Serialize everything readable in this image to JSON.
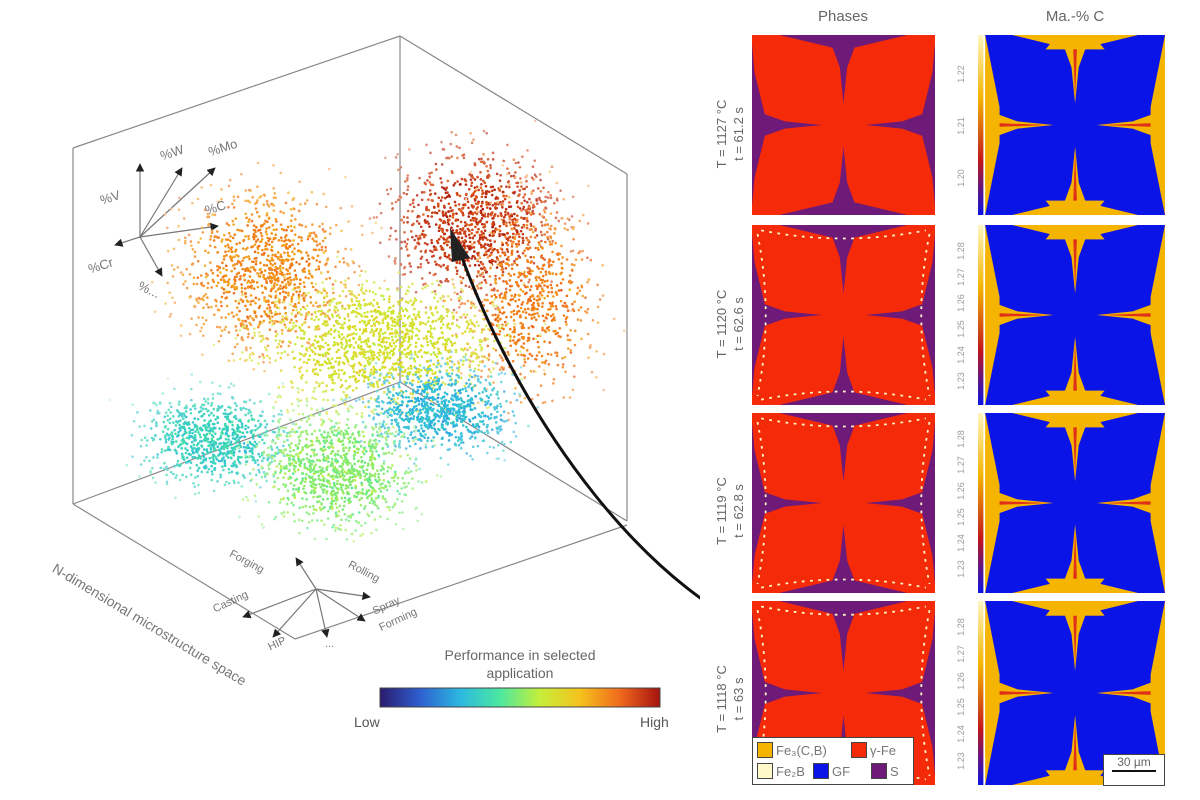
{
  "left_panel": {
    "space_label": "N-dimensional microstructure space",
    "composition_axes": [
      "%V",
      "%W",
      "%Mo",
      "%C",
      "%Cr",
      "%..."
    ],
    "process_axes": [
      "Forging",
      "Rolling",
      "Casting",
      "Spray",
      "Forming",
      "HIP",
      "..."
    ],
    "colorbar": {
      "title_line1": "Performance in selected",
      "title_line2": "application",
      "low": "Low",
      "high": "High",
      "colormap": [
        "#2a1b6e",
        "#2f5fd0",
        "#2cb8e0",
        "#4be8a0",
        "#c6ee3a",
        "#f5c21c",
        "#f06a1c",
        "#a3120f"
      ]
    }
  },
  "right_panel": {
    "column_titles": [
      "Phases",
      "Ma.-% C"
    ],
    "rows": [
      {
        "temperature": "T = 1127 °C",
        "time": "t = 61.2 s",
        "ticks": [
          "1.22",
          "1.21",
          "1.20"
        ]
      },
      {
        "temperature": "T = 1120 °C",
        "time": "t = 62.6 s",
        "ticks": [
          "1.28",
          "1.27",
          "1.26",
          "1.25",
          "1.24",
          "1.23"
        ]
      },
      {
        "temperature": "T = 1119 °C",
        "time": "t = 62.8 s",
        "ticks": [
          "1.28",
          "1.27",
          "1.26",
          "1.25",
          "1.24",
          "1.23"
        ]
      },
      {
        "temperature": "T = 1118 °C",
        "time": "t = 63 s",
        "ticks": [
          "1.28",
          "1.27",
          "1.26",
          "1.25",
          "1.24",
          "1.23"
        ]
      }
    ],
    "legend": [
      {
        "label": "Fe₃(C,B)",
        "color": "#f5b400"
      },
      {
        "label": "γ-Fe",
        "color": "#f52a08"
      },
      {
        "label": "Fe₂B",
        "color": "#fff8c8"
      },
      {
        "label": "GF",
        "color": "#0a14e6"
      },
      {
        "label": "S",
        "color": "#6e1a78"
      }
    ],
    "scale_bar": "30 µm"
  }
}
